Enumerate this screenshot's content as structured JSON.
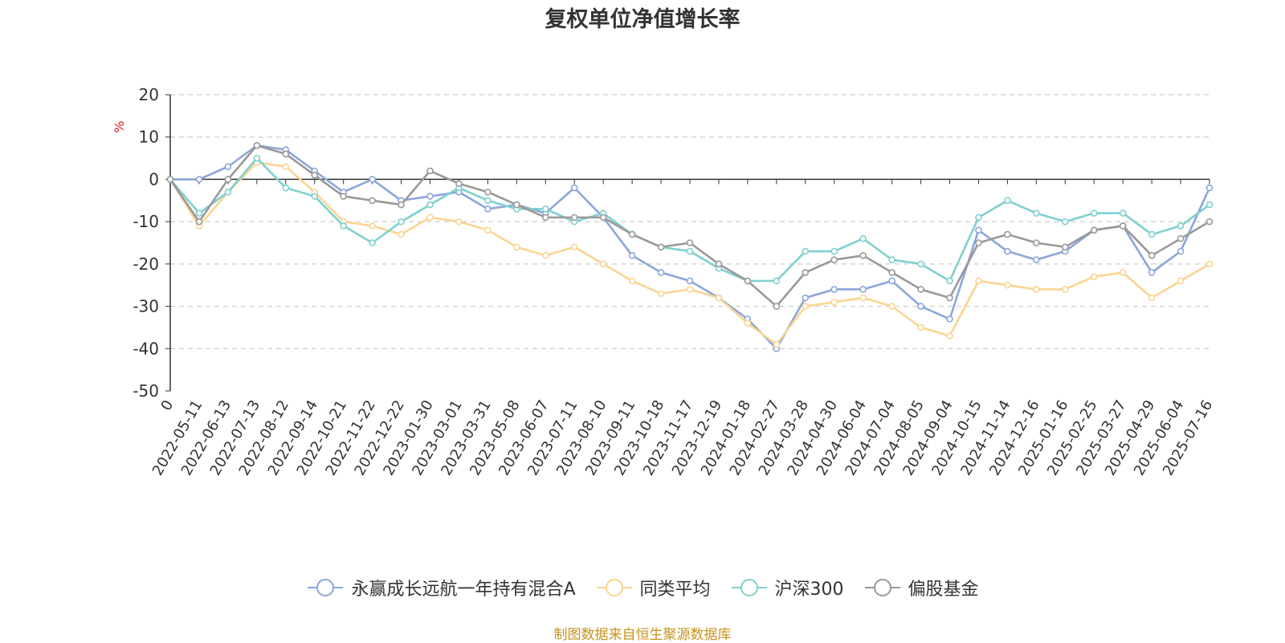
{
  "chart_data": {
    "type": "line",
    "title": "复权单位净值增长率",
    "ylabel": "%",
    "ylim": [
      -50,
      20
    ],
    "y_ticks": [
      20,
      10,
      0,
      -10,
      -20,
      -30,
      -40,
      -50
    ],
    "grid": true,
    "legend_position": "bottom",
    "categories": [
      "0",
      "2022-05-11",
      "2022-06-13",
      "2022-07-13",
      "2022-08-12",
      "2022-09-14",
      "2022-10-21",
      "2022-11-22",
      "2022-12-22",
      "2023-01-30",
      "2023-03-01",
      "2023-03-31",
      "2023-05-08",
      "2023-06-07",
      "2023-07-11",
      "2023-08-10",
      "2023-09-11",
      "2023-10-18",
      "2023-11-17",
      "2023-12-19",
      "2024-01-18",
      "2024-02-27",
      "2024-03-28",
      "2024-04-30",
      "2024-06-04",
      "2024-07-04",
      "2024-08-05",
      "2024-09-04",
      "2024-10-15",
      "2024-11-14",
      "2024-12-16",
      "2025-01-16",
      "2025-02-25",
      "2025-03-27",
      "2025-04-29",
      "2025-06-04",
      "2025-07-16"
    ],
    "series": [
      {
        "name": "永赢成长远航一年持有混合A",
        "color": "#8ba6d9",
        "values": [
          0,
          0,
          3,
          8,
          7,
          2,
          -3,
          0,
          -5,
          -4,
          -3,
          -7,
          -6,
          -8,
          -2,
          -9,
          -18,
          -22,
          -24,
          -28,
          -33,
          -40,
          -28,
          -26,
          -26,
          -24,
          -30,
          -33,
          -12,
          -17,
          -19,
          -17,
          -12,
          -11,
          -22,
          -17,
          -2
        ]
      },
      {
        "name": "同类平均",
        "color": "#fbd491",
        "values": [
          0,
          -11,
          -3,
          4,
          3,
          -3,
          -10,
          -11,
          -13,
          -9,
          -10,
          -12,
          -16,
          -18,
          -16,
          -20,
          -24,
          -27,
          -26,
          -28,
          -34,
          -39,
          -30,
          -29,
          -28,
          -30,
          -35,
          -37,
          -24,
          -25,
          -26,
          -26,
          -23,
          -22,
          -28,
          -24,
          -20
        ]
      },
      {
        "name": "沪深300",
        "color": "#7fd0cf",
        "values": [
          0,
          -8,
          -3,
          5,
          -2,
          -4,
          -11,
          -15,
          -10,
          -6,
          -2,
          -5,
          -7,
          -7,
          -10,
          -8,
          -13,
          -16,
          -17,
          -21,
          -24,
          -24,
          -17,
          -17,
          -14,
          -19,
          -20,
          -24,
          -9,
          -5,
          -8,
          -10,
          -8,
          -8,
          -13,
          -11,
          -6
        ]
      },
      {
        "name": "偏股基金",
        "color": "#999999",
        "values": [
          0,
          -10,
          0,
          8,
          6,
          1,
          -4,
          -5,
          -6,
          2,
          -1,
          -3,
          -6,
          -9,
          -9,
          -9,
          -13,
          -16,
          -15,
          -20,
          -24,
          -30,
          -22,
          -19,
          -18,
          -22,
          -26,
          -28,
          -15,
          -13,
          -15,
          -16,
          -12,
          -11,
          -18,
          -14,
          -10
        ]
      }
    ]
  },
  "footer": {
    "source": "制图数据来自恒生聚源数据库"
  }
}
